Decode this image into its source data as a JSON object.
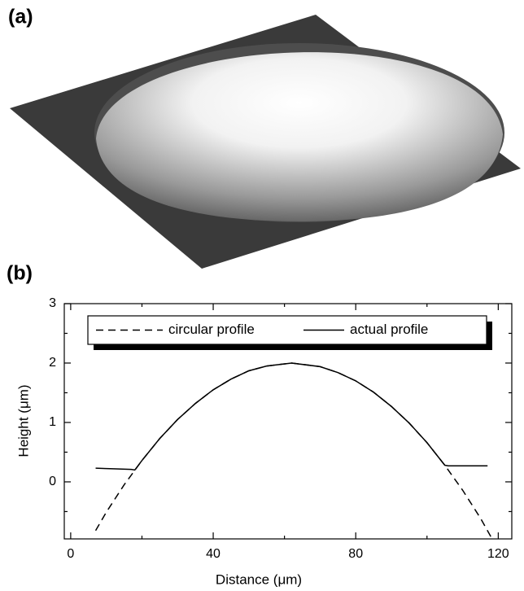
{
  "panel_a_label": "(a)",
  "chart_data": {
    "type": "line",
    "panel_label": "(b)",
    "xlabel": "Distance (μm)",
    "ylabel": "Height (μm)",
    "xlim": [
      -1.8,
      123.8
    ],
    "ylim": [
      -0.96,
      3
    ],
    "xticks": [
      0,
      40,
      80,
      120
    ],
    "yticks": [
      0,
      1,
      2,
      3
    ],
    "xminor_ticks": [
      20,
      60,
      100
    ],
    "yminor_ticks": [
      -0.5,
      0.5,
      1.5,
      2.5
    ],
    "legend": "top",
    "series": [
      {
        "name": "circular profile",
        "color": "#000000",
        "dash": true,
        "x": [
          7,
          10,
          15,
          20,
          25,
          30,
          35,
          40,
          45,
          50,
          55,
          62,
          70,
          75,
          80,
          85,
          90,
          95,
          100,
          105,
          110,
          115,
          118
        ],
        "values": [
          -0.82,
          -0.51,
          -0.05,
          0.36,
          0.73,
          1.05,
          1.32,
          1.55,
          1.73,
          1.87,
          1.95,
          2.0,
          1.94,
          1.84,
          1.7,
          1.51,
          1.27,
          0.99,
          0.66,
          0.28,
          -0.14,
          -0.61,
          -0.93
        ]
      },
      {
        "name": "actual profile",
        "color": "#000000",
        "dash": false,
        "x": [
          7,
          12,
          17,
          18,
          20,
          25,
          30,
          35,
          40,
          45,
          50,
          55,
          62,
          70,
          75,
          80,
          85,
          90,
          95,
          100,
          105,
          106,
          117
        ],
        "values": [
          0.23,
          0.22,
          0.21,
          0.2,
          0.36,
          0.73,
          1.05,
          1.32,
          1.55,
          1.73,
          1.87,
          1.95,
          2.0,
          1.94,
          1.84,
          1.7,
          1.51,
          1.27,
          0.99,
          0.66,
          0.28,
          0.27,
          0.27
        ]
      }
    ]
  }
}
